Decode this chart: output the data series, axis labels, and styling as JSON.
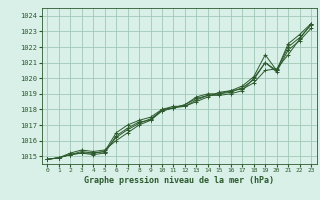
{
  "title": "Graphe pression niveau de la mer (hPa)",
  "background_color": "#d8f0e8",
  "plot_bg_color": "#d8f0e8",
  "grid_color": "#a0c8b8",
  "line_color": "#2d5a2d",
  "marker_color": "#2d5a2d",
  "xlim": [
    -0.5,
    23.5
  ],
  "ylim": [
    1014.5,
    1024.5
  ],
  "yticks": [
    1015,
    1016,
    1017,
    1018,
    1019,
    1020,
    1021,
    1022,
    1023,
    1024
  ],
  "xticks": [
    0,
    1,
    2,
    3,
    4,
    5,
    6,
    7,
    8,
    9,
    10,
    11,
    12,
    13,
    14,
    15,
    16,
    17,
    18,
    19,
    20,
    21,
    22,
    23
  ],
  "series": [
    [
      1014.8,
      1014.9,
      1015.1,
      1015.2,
      1015.1,
      1015.2,
      1016.3,
      1016.8,
      1017.2,
      1017.3,
      1017.9,
      1018.1,
      1018.2,
      1018.6,
      1018.9,
      1018.9,
      1019.0,
      1019.2,
      1020.0,
      1021.0,
      1020.5,
      1022.0,
      1022.6,
      1023.4
    ],
    [
      1014.8,
      1014.9,
      1015.1,
      1015.2,
      1015.2,
      1015.3,
      1016.5,
      1017.0,
      1017.3,
      1017.5,
      1018.0,
      1018.2,
      1018.2,
      1018.5,
      1018.8,
      1019.1,
      1019.2,
      1019.3,
      1019.7,
      1020.5,
      1020.6,
      1021.5,
      1022.5,
      1023.5
    ],
    [
      1014.8,
      1014.9,
      1015.2,
      1015.4,
      1015.3,
      1015.4,
      1016.0,
      1016.5,
      1017.0,
      1017.3,
      1018.0,
      1018.1,
      1018.3,
      1018.8,
      1019.0,
      1019.0,
      1019.2,
      1019.5,
      1020.1,
      1021.5,
      1020.5,
      1022.2,
      1022.8,
      1023.5
    ],
    [
      1014.8,
      1014.9,
      1015.1,
      1015.3,
      1015.2,
      1015.3,
      1016.2,
      1016.7,
      1017.1,
      1017.4,
      1017.9,
      1018.1,
      1018.3,
      1018.7,
      1018.9,
      1019.0,
      1019.1,
      1019.4,
      1019.9,
      1021.0,
      1020.4,
      1021.8,
      1022.4,
      1023.2
    ]
  ],
  "title_fontsize": 6,
  "tick_fontsize": 5,
  "label_color": "#2d5a2d"
}
